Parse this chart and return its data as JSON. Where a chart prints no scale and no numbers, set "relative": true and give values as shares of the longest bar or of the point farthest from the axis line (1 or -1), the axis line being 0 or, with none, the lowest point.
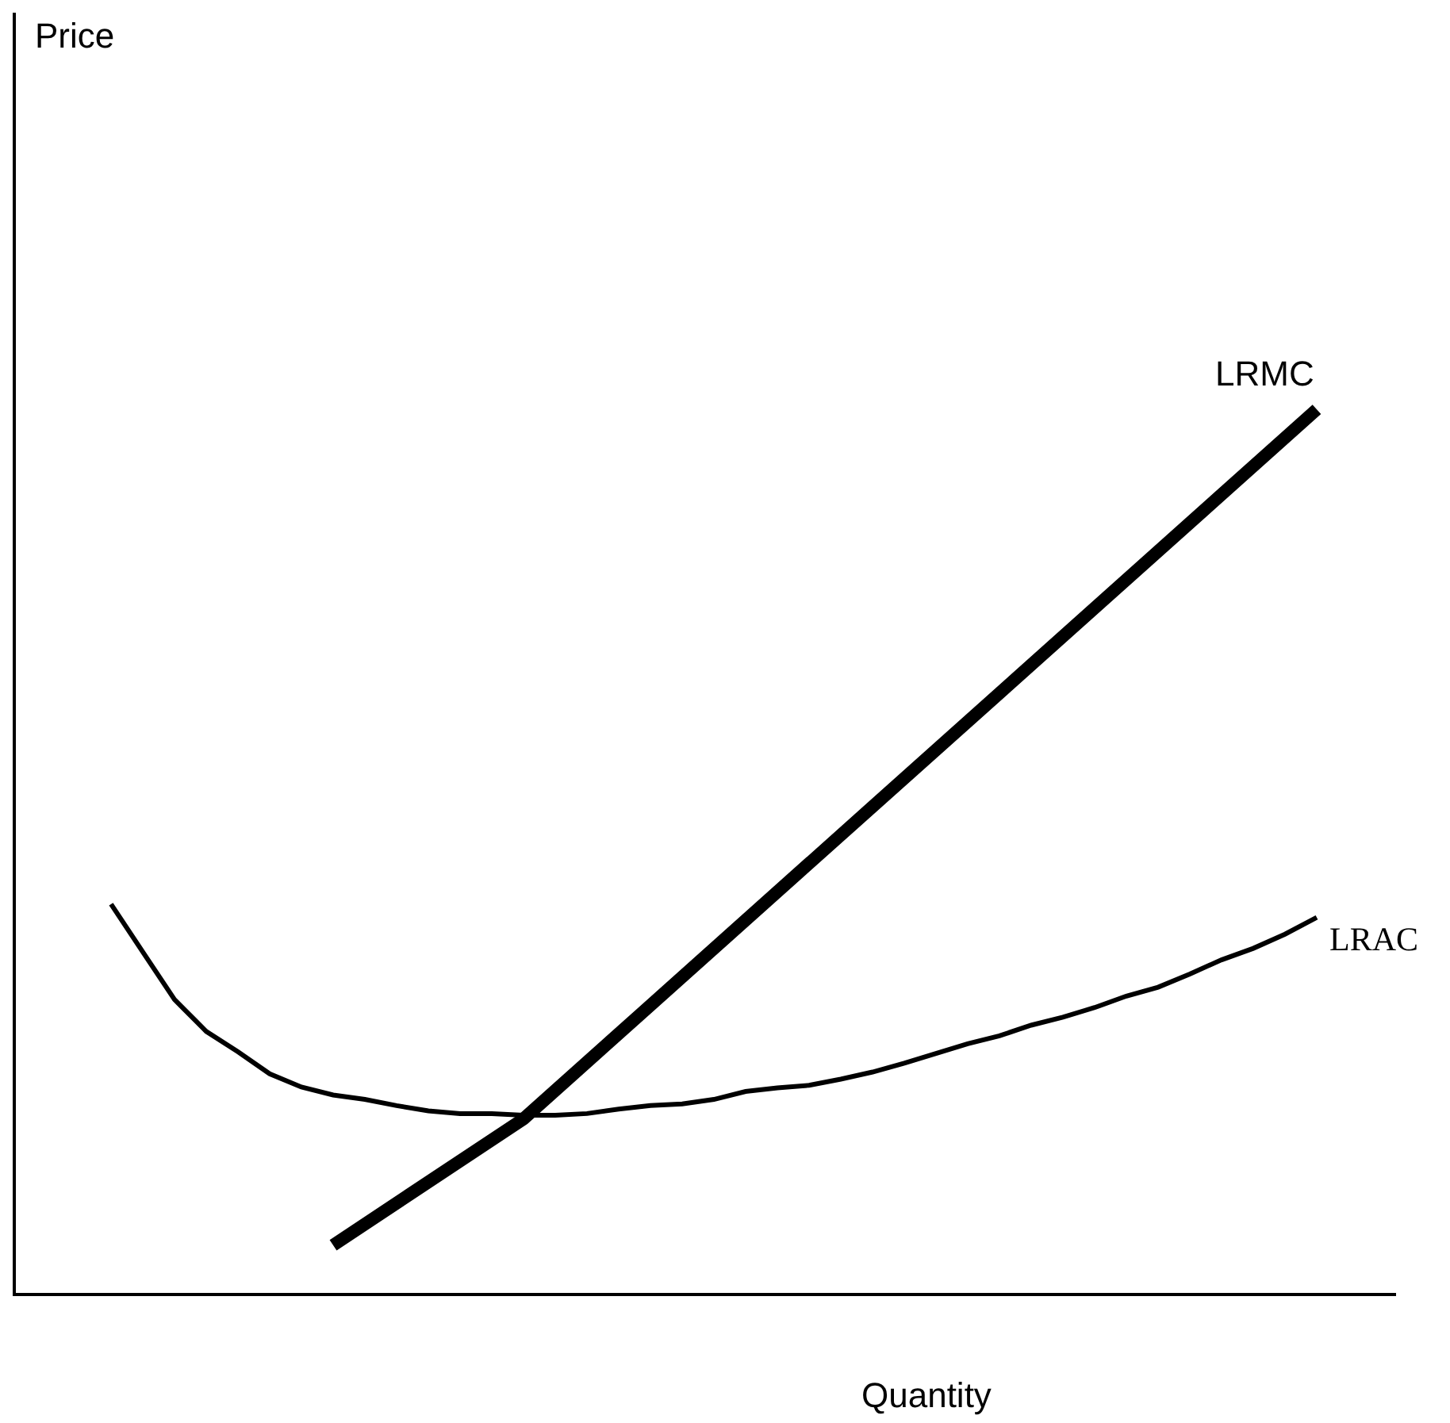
{
  "chart_data": {
    "type": "line",
    "relative": true,
    "xlabel": "Quantity",
    "annotations": [
      "Price"
    ],
    "categories": [
      null,
      null,
      null,
      null,
      null,
      null,
      null,
      null,
      null,
      null,
      null,
      null,
      null,
      null,
      null,
      null,
      null,
      null,
      null,
      null,
      null,
      null,
      null,
      null,
      null,
      null,
      null,
      null,
      null,
      null,
      null,
      null,
      null,
      null,
      null,
      null,
      null,
      null,
      null,
      null,
      null,
      null,
      null,
      null
    ],
    "series": [
      {
        "name": "LRMC",
        "color": "#000000",
        "values": [
          null,
          null,
          null,
          null,
          null,
          null,
          null,
          null,
          null,
          null,
          0.054,
          null,
          null,
          null,
          null,
          null,
          0.197,
          null,
          null,
          null,
          null,
          null,
          null,
          null,
          null,
          null,
          null,
          null,
          null,
          null,
          null,
          null,
          null,
          null,
          null,
          null,
          null,
          null,
          null,
          null,
          null,
          1,
          null,
          null
        ]
      },
      {
        "name": "LRAC",
        "color": "#000000",
        "values": [
          null,
          null,
          null,
          0.44,
          0.386,
          0.332,
          0.296,
          0.273,
          0.248,
          0.233,
          0.224,
          0.219,
          0.212,
          0.206,
          0.203,
          0.203,
          0.201,
          0.201,
          0.203,
          0.208,
          0.212,
          0.214,
          0.219,
          0.228,
          0.232,
          0.235,
          0.242,
          0.25,
          0.26,
          0.271,
          0.282,
          0.291,
          0.303,
          0.312,
          0.323,
          0.336,
          0.346,
          0.361,
          0.377,
          0.39,
          0.406,
          0.425,
          null,
          null
        ]
      }
    ],
    "legend": false,
    "tick_labels": false
  }
}
